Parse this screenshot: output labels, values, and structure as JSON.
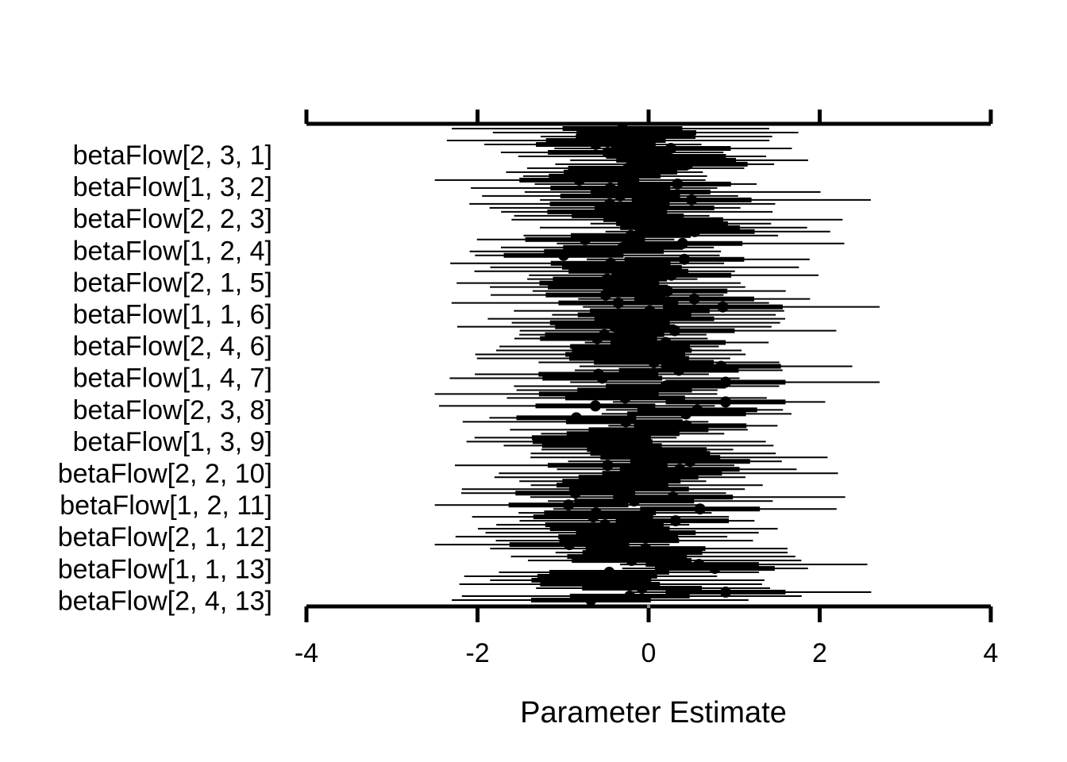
{
  "chart_data": {
    "type": "interval",
    "xlabel": "Parameter Estimate",
    "xlim": [
      -4,
      4
    ],
    "xticks": [
      -4,
      -2,
      0,
      2,
      4
    ],
    "xtick_labels": [
      "-4",
      "-2",
      "0",
      "2",
      "4"
    ],
    "axes": [
      "top",
      "bottom"
    ],
    "grid": false,
    "reference_line": 0,
    "labeled_parameters": [
      "betaFlow[2, 3, 1]",
      "betaFlow[1, 3, 2]",
      "betaFlow[2, 2, 3]",
      "betaFlow[1, 2, 4]",
      "betaFlow[2, 1, 5]",
      "betaFlow[1, 1, 6]",
      "betaFlow[2, 4, 6]",
      "betaFlow[1, 4, 7]",
      "betaFlow[2, 3, 8]",
      "betaFlow[1, 3, 9]",
      "betaFlow[2, 2, 10]",
      "betaFlow[1, 2, 11]",
      "betaFlow[2, 1, 12]",
      "betaFlow[1, 1, 13]",
      "betaFlow[2, 4, 13]"
    ],
    "series_count": 120,
    "approx_median_range": [
      -1.2,
      0.9
    ],
    "approx_interval_range": [
      -2.5,
      2.7
    ],
    "color": "#000000"
  }
}
